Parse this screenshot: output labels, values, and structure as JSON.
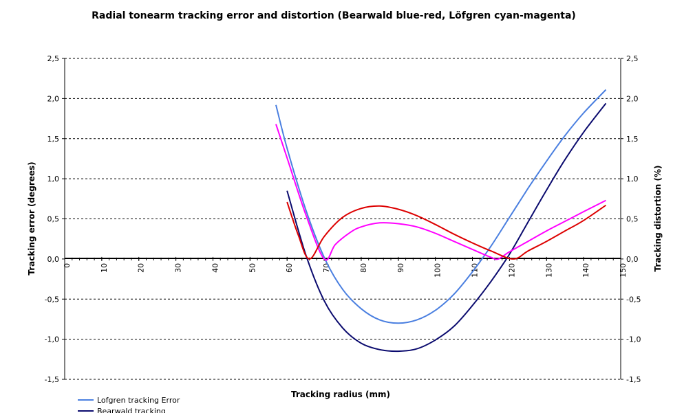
{
  "chart_data": {
    "type": "line",
    "title": "Radial tonearm tracking error and distortion (Bearwald blue-red, Löfgren cyan-magenta)",
    "xlabel": "Tracking radius (mm)",
    "ylabel_left": "Tracking error (degrees)",
    "ylabel_right": "Tracking distortion (%)",
    "xlim": [
      0,
      150
    ],
    "ylim": [
      -1.5,
      2.5
    ],
    "x_ticks": [
      "0",
      "10",
      "20",
      "30",
      "40",
      "50",
      "60",
      "70",
      "80",
      "90",
      "100",
      "110",
      "120",
      "130",
      "140",
      "150"
    ],
    "y_ticks": [
      "2,5",
      "2,0",
      "1,5",
      "1,0",
      "0,5",
      "0,0",
      "-0,5",
      "-1,0",
      "-1,5"
    ],
    "grid": "horizontal-dashed",
    "legend_position": "bottom-left",
    "series": [
      {
        "name": "Lofgren tracking Error",
        "color": "#4a7fe0",
        "x": [
          57,
          60,
          65,
          70,
          75,
          80,
          85,
          90,
          95,
          100,
          105,
          110,
          115,
          120,
          125,
          130,
          135,
          140,
          146
        ],
        "y": [
          1.92,
          1.38,
          0.62,
          0.02,
          -0.38,
          -0.62,
          -0.76,
          -0.8,
          -0.76,
          -0.64,
          -0.44,
          -0.16,
          0.16,
          0.52,
          0.88,
          1.22,
          1.54,
          1.82,
          2.11
        ]
      },
      {
        "name": "",
        "color": "#0a0a6e",
        "x": [
          60,
          65,
          70,
          75,
          80,
          85,
          90,
          95,
          100,
          105,
          110,
          115,
          120,
          125,
          130,
          135,
          140,
          146
        ],
        "y": [
          0.85,
          0.06,
          -0.52,
          -0.86,
          -1.05,
          -1.13,
          -1.15,
          -1.12,
          -1.01,
          -0.84,
          -0.58,
          -0.28,
          0.06,
          0.46,
          0.86,
          1.24,
          1.58,
          1.94
        ]
      },
      {
        "name": "",
        "color": "#ff00ff",
        "x": [
          57,
          60,
          65,
          70,
          73,
          77,
          80,
          85,
          90,
          95,
          100,
          105,
          110,
          115,
          117,
          120,
          125,
          130,
          135,
          140,
          146
        ],
        "y": [
          1.68,
          1.26,
          0.56,
          0.0,
          0.18,
          0.33,
          0.4,
          0.45,
          0.44,
          0.4,
          0.32,
          0.22,
          0.12,
          0.02,
          0.0,
          0.09,
          0.22,
          0.35,
          0.47,
          0.59,
          0.73
        ]
      },
      {
        "name": "",
        "color": "#dd0000",
        "x": [
          60,
          63,
          66,
          70,
          75,
          80,
          85,
          90,
          95,
          100,
          105,
          110,
          115,
          121,
          125,
          130,
          135,
          140,
          146
        ],
        "y": [
          0.71,
          0.3,
          0.0,
          0.28,
          0.52,
          0.63,
          0.66,
          0.62,
          0.54,
          0.43,
          0.31,
          0.2,
          0.1,
          0.0,
          0.1,
          0.22,
          0.35,
          0.48,
          0.67
        ]
      }
    ],
    "legend": [
      "Lofgren tracking Error",
      "Bearwald tracking"
    ]
  }
}
